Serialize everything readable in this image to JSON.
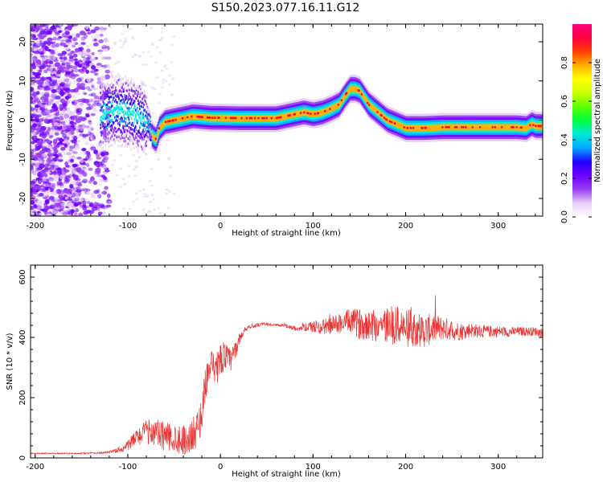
{
  "figure": {
    "title": "S150.2023.077.16.11.G12"
  },
  "chart_data": [
    {
      "type": "heatmap",
      "xlabel": "Height of straight line (km)",
      "ylabel": "Frequency (Hz)",
      "xlim": [
        -205,
        348
      ],
      "ylim": [
        -24.5,
        24.5
      ],
      "xticks": [
        "-200",
        "-100",
        "0",
        "100",
        "200",
        "300"
      ],
      "yticks": [
        "-20",
        "-10",
        "0",
        "10",
        "20"
      ],
      "colorbar": {
        "label": "Normalized spectral amplitude",
        "range": [
          0,
          1
        ],
        "ticks": [
          "0.0",
          "0.2",
          "0.4",
          "0.6",
          "0.8"
        ],
        "colormap": [
          "#ffffff",
          "#e6cff5",
          "#9a3ff0",
          "#6f00ff",
          "#1f00ff",
          "#00a8ff",
          "#00e8d8",
          "#00ff40",
          "#5cff00",
          "#c8ff00",
          "#ffff00",
          "#ffb000",
          "#ff4000",
          "#ff0040",
          "#ff0080"
        ]
      },
      "ridge_x": [
        -125,
        -110,
        -95,
        -85,
        -78,
        -74,
        -70,
        -66,
        -60,
        -50,
        -40,
        -30,
        -20,
        -10,
        0,
        20,
        40,
        60,
        70,
        80,
        90,
        100,
        110,
        120,
        128,
        135,
        140,
        145,
        150,
        160,
        170,
        180,
        190,
        200,
        210,
        220,
        240,
        260,
        280,
        300,
        320,
        330,
        336,
        340,
        348
      ],
      "ridge_freq": [
        2,
        2.5,
        1.5,
        0.5,
        -1,
        -4,
        -5,
        -2,
        -0.5,
        0,
        0.5,
        1,
        0.8,
        0.6,
        0.6,
        0.5,
        0.5,
        0.5,
        1,
        1.5,
        2,
        1.5,
        2,
        3,
        4,
        6.5,
        8,
        8,
        7.5,
        4,
        2,
        0,
        -1,
        -2,
        -2,
        -2,
        -1.8,
        -1.8,
        -1.8,
        -1.8,
        -1.8,
        -2,
        -1,
        -1.5,
        -1.5
      ]
    },
    {
      "type": "line",
      "xlabel": "Height of straight line (km)",
      "ylabel": "SNR (10 * v/v)",
      "xlim": [
        -205,
        348
      ],
      "ylim": [
        0,
        640
      ],
      "xticks": [
        "-200",
        "-100",
        "0",
        "100",
        "200",
        "300"
      ],
      "yticks": [
        "0",
        "200",
        "400",
        "600"
      ],
      "series": [
        {
          "color": "#ee3333",
          "x": [
            -205,
            -150,
            -120,
            -105,
            -95,
            -85,
            -75,
            -65,
            -55,
            -45,
            -35,
            -25,
            -20,
            -15,
            -10,
            -5,
            0,
            5,
            10,
            15,
            20,
            25,
            30,
            40,
            50,
            60,
            70,
            80,
            90,
            100,
            110,
            120,
            130,
            140,
            150,
            160,
            170,
            180,
            190,
            200,
            210,
            220,
            230,
            240,
            250,
            260,
            270,
            280,
            290,
            300,
            310,
            320,
            330,
            340,
            348
          ],
          "y": [
            15,
            15,
            18,
            30,
            55,
            80,
            90,
            75,
            70,
            65,
            60,
            95,
            150,
            270,
            300,
            280,
            330,
            340,
            320,
            345,
            390,
            420,
            435,
            440,
            445,
            440,
            440,
            430,
            432,
            435,
            435,
            440,
            448,
            455,
            445,
            445,
            440,
            440,
            440,
            430,
            430,
            420,
            430,
            430,
            425,
            420,
            425,
            420,
            420,
            420,
            418,
            420,
            420,
            420,
            415
          ],
          "noise": [
            1.5,
            2,
            4,
            10,
            25,
            35,
            45,
            50,
            50,
            50,
            50,
            60,
            60,
            60,
            60,
            55,
            55,
            50,
            45,
            35,
            20,
            10,
            8,
            6,
            5,
            5,
            6,
            8,
            12,
            20,
            25,
            30,
            35,
            40,
            50,
            55,
            60,
            65,
            65,
            65,
            60,
            55,
            50,
            40,
            35,
            30,
            25,
            22,
            20,
            18,
            16,
            15,
            15,
            15,
            15
          ]
        }
      ]
    }
  ]
}
